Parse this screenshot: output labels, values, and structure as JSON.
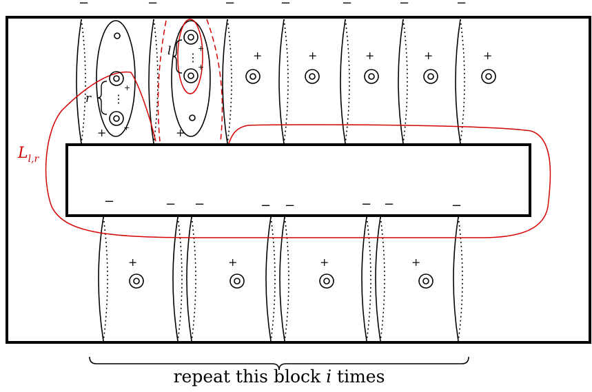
{
  "diagram": {
    "label_curve": "L",
    "label_subscript": "l,r",
    "label_r": "r",
    "label_l": "l",
    "sign_minus": "−",
    "sign_plus": "+",
    "dots": "⋮",
    "colors": {
      "ink": "#000000",
      "curve": "#d40000"
    },
    "caption": {
      "prefix": "repeat this block ",
      "variable": "i",
      "suffix": " times"
    }
  }
}
